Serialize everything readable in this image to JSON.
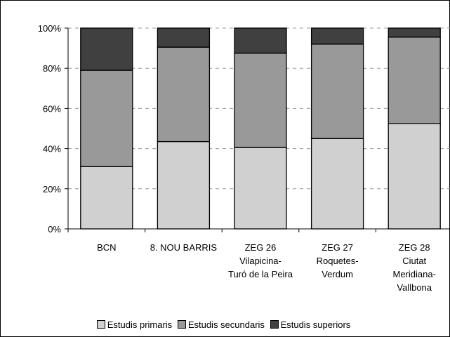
{
  "chart_data": {
    "type": "bar",
    "stacked": true,
    "categories": [
      [
        "BCN"
      ],
      [
        "8. NOU BARRIS"
      ],
      [
        "ZEG 26",
        "Vilapicina-",
        "Turó de la Peira"
      ],
      [
        "ZEG 27",
        "Roquetes-",
        "Verdum"
      ],
      [
        "ZEG 28",
        "Ciutat",
        "Meridiana-",
        "Vallbona"
      ]
    ],
    "series": [
      {
        "name": "Estudis primaris",
        "values": [
          31,
          43.5,
          40.5,
          45,
          52.5
        ],
        "color": "#d0d0d0"
      },
      {
        "name": "Estudis secundaris",
        "values": [
          48,
          47,
          47,
          47,
          43
        ],
        "color": "#999999"
      },
      {
        "name": "Estudis superiors",
        "values": [
          21,
          9.5,
          12.5,
          8,
          4.5
        ],
        "color": "#404040"
      }
    ],
    "yticks": [
      "0%",
      "20%",
      "40%",
      "60%",
      "80%",
      "100%"
    ],
    "ylim": [
      0,
      100
    ],
    "grid": "horizontal dashed",
    "legend_position": "bottom"
  }
}
